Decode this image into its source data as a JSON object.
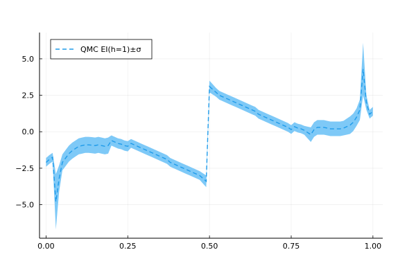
{
  "chart_data": {
    "type": "line",
    "title": "",
    "xlabel": "",
    "ylabel": "",
    "xlim": [
      -0.02,
      1.03
    ],
    "ylim": [
      -7.3,
      6.8
    ],
    "grid": true,
    "legend_position": "top-left",
    "x_ticks": [
      {
        "value": 0.0,
        "label": "0.00"
      },
      {
        "value": 0.25,
        "label": "0.25"
      },
      {
        "value": 0.5,
        "label": "0.50"
      },
      {
        "value": 0.75,
        "label": "0.75"
      },
      {
        "value": 1.0,
        "label": "1.00"
      }
    ],
    "y_ticks": [
      {
        "value": -5.0,
        "label": "−5.0"
      },
      {
        "value": -2.5,
        "label": "−2.5"
      },
      {
        "value": 0.0,
        "label": "0.0"
      },
      {
        "value": 2.5,
        "label": "2.5"
      },
      {
        "value": 5.0,
        "label": "5.0"
      }
    ],
    "series": [
      {
        "name": "QMC EI(h=1)±σ",
        "style": "dashed",
        "color": "#1f9bea",
        "band_color": "#7ec9f7",
        "x": [
          0.0,
          0.01,
          0.02,
          0.03,
          0.04,
          0.05,
          0.06,
          0.07,
          0.08,
          0.09,
          0.1,
          0.11,
          0.12,
          0.13,
          0.14,
          0.15,
          0.16,
          0.17,
          0.18,
          0.19,
          0.2,
          0.21,
          0.22,
          0.23,
          0.24,
          0.25,
          0.26,
          0.27,
          0.28,
          0.29,
          0.3,
          0.31,
          0.32,
          0.33,
          0.34,
          0.35,
          0.36,
          0.37,
          0.38,
          0.39,
          0.4,
          0.41,
          0.42,
          0.43,
          0.44,
          0.45,
          0.46,
          0.47,
          0.48,
          0.49,
          0.5,
          0.51,
          0.52,
          0.53,
          0.54,
          0.55,
          0.56,
          0.57,
          0.58,
          0.59,
          0.6,
          0.61,
          0.62,
          0.63,
          0.64,
          0.65,
          0.66,
          0.67,
          0.68,
          0.69,
          0.7,
          0.71,
          0.72,
          0.73,
          0.74,
          0.75,
          0.76,
          0.77,
          0.78,
          0.79,
          0.8,
          0.81,
          0.82,
          0.83,
          0.84,
          0.85,
          0.86,
          0.87,
          0.88,
          0.89,
          0.9,
          0.91,
          0.92,
          0.93,
          0.94,
          0.95,
          0.96,
          0.97,
          0.98,
          0.99,
          1.0
        ],
        "mean": [
          -2.1,
          -1.9,
          -1.75,
          -4.8,
          -3.2,
          -2.1,
          -1.8,
          -1.5,
          -1.3,
          -1.15,
          -1.0,
          -0.95,
          -0.9,
          -0.9,
          -0.92,
          -0.95,
          -0.9,
          -0.95,
          -1.0,
          -0.95,
          -0.6,
          -0.7,
          -0.8,
          -0.85,
          -0.95,
          -1.0,
          -0.8,
          -0.9,
          -1.0,
          -1.1,
          -1.2,
          -1.3,
          -1.4,
          -1.5,
          -1.6,
          -1.7,
          -1.8,
          -1.9,
          -2.1,
          -2.2,
          -2.3,
          -2.4,
          -2.5,
          -2.6,
          -2.7,
          -2.8,
          -2.9,
          -3.0,
          -3.2,
          -3.4,
          3.1,
          2.9,
          2.7,
          2.5,
          2.4,
          2.3,
          2.2,
          2.1,
          2.0,
          1.9,
          1.8,
          1.7,
          1.6,
          1.5,
          1.4,
          1.2,
          1.1,
          1.0,
          0.9,
          0.8,
          0.7,
          0.6,
          0.5,
          0.4,
          0.3,
          0.15,
          0.35,
          0.25,
          0.2,
          0.1,
          -0.05,
          -0.2,
          0.15,
          0.3,
          0.3,
          0.3,
          0.25,
          0.2,
          0.2,
          0.2,
          0.2,
          0.25,
          0.35,
          0.45,
          0.65,
          1.0,
          1.5,
          4.3,
          2.0,
          1.2,
          1.4
        ],
        "sigma": [
          0.3,
          0.3,
          0.3,
          1.9,
          0.9,
          0.55,
          0.55,
          0.55,
          0.55,
          0.55,
          0.55,
          0.55,
          0.55,
          0.55,
          0.55,
          0.55,
          0.55,
          0.55,
          0.55,
          0.55,
          0.35,
          0.35,
          0.35,
          0.35,
          0.35,
          0.35,
          0.3,
          0.3,
          0.3,
          0.3,
          0.3,
          0.3,
          0.3,
          0.3,
          0.3,
          0.3,
          0.3,
          0.3,
          0.3,
          0.3,
          0.3,
          0.3,
          0.3,
          0.3,
          0.3,
          0.3,
          0.3,
          0.3,
          0.35,
          0.4,
          0.4,
          0.35,
          0.3,
          0.3,
          0.3,
          0.3,
          0.3,
          0.3,
          0.3,
          0.3,
          0.3,
          0.3,
          0.3,
          0.3,
          0.3,
          0.3,
          0.3,
          0.3,
          0.3,
          0.3,
          0.3,
          0.3,
          0.3,
          0.3,
          0.3,
          0.3,
          0.3,
          0.3,
          0.3,
          0.3,
          0.4,
          0.5,
          0.5,
          0.5,
          0.5,
          0.5,
          0.5,
          0.5,
          0.5,
          0.5,
          0.5,
          0.5,
          0.55,
          0.6,
          0.6,
          0.6,
          0.7,
          1.8,
          0.5,
          0.3,
          0.3
        ]
      }
    ]
  }
}
